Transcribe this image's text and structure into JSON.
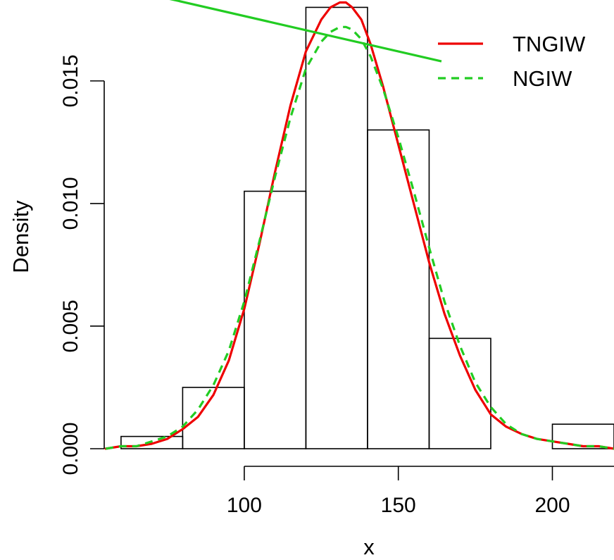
{
  "chart_data": {
    "type": "histogram",
    "xlabel": "x",
    "ylabel": "Density",
    "xlim": [
      55,
      220
    ],
    "ylim": [
      0,
      0.0183
    ],
    "x_ticks": [
      100,
      150,
      200
    ],
    "x_tick_labels": [
      "100",
      "150",
      "200"
    ],
    "y_ticks": [
      0.0,
      0.005,
      0.01,
      0.015
    ],
    "y_tick_labels": [
      "0.000",
      "0.005",
      "0.010",
      "0.015"
    ],
    "bins": [
      {
        "start": 60,
        "end": 80,
        "density": 0.0005
      },
      {
        "start": 80,
        "end": 100,
        "density": 0.0025
      },
      {
        "start": 100,
        "end": 120,
        "density": 0.0105
      },
      {
        "start": 120,
        "end": 140,
        "density": 0.018
      },
      {
        "start": 140,
        "end": 160,
        "density": 0.013
      },
      {
        "start": 160,
        "end": 180,
        "density": 0.0045
      },
      {
        "start": 180,
        "end": 200,
        "density": 0.0
      },
      {
        "start": 200,
        "end": 220,
        "density": 0.001
      }
    ],
    "series": [
      {
        "name": "TNGIW",
        "color": "#ee0000",
        "line_style": "solid",
        "x": [
          55,
          60,
          65,
          70,
          75,
          80,
          85,
          90,
          95,
          100,
          105,
          110,
          115,
          120,
          125,
          128,
          131,
          133,
          135,
          138,
          141,
          145,
          150,
          155,
          160,
          165,
          170,
          175,
          180,
          185,
          190,
          195,
          200,
          205,
          210,
          215,
          220
        ],
        "values": [
          0.0,
          0.0001,
          0.0001,
          0.0002,
          0.0004,
          0.0008,
          0.0013,
          0.0022,
          0.0036,
          0.0057,
          0.0084,
          0.0113,
          0.014,
          0.0162,
          0.0175,
          0.018,
          0.0182,
          0.0182,
          0.018,
          0.0175,
          0.0165,
          0.0148,
          0.0124,
          0.01,
          0.0076,
          0.0055,
          0.0038,
          0.0024,
          0.0014,
          0.0009,
          0.0006,
          0.0004,
          0.0003,
          0.0002,
          0.0001,
          0.0001,
          0.0
        ]
      },
      {
        "name": "NGIW",
        "color": "#22cc22",
        "line_style": "dashed",
        "x": [
          55,
          60,
          65,
          70,
          75,
          80,
          85,
          90,
          95,
          100,
          105,
          110,
          115,
          120,
          125,
          128,
          131,
          133,
          135,
          138,
          141,
          145,
          150,
          155,
          160,
          165,
          170,
          175,
          180,
          185,
          190,
          195,
          200,
          205,
          210,
          215,
          220
        ],
        "values": [
          0.0,
          0.0001,
          0.0001,
          0.0003,
          0.0005,
          0.0009,
          0.0016,
          0.0026,
          0.004,
          0.006,
          0.0085,
          0.0111,
          0.0135,
          0.0155,
          0.0166,
          0.017,
          0.0172,
          0.0172,
          0.0171,
          0.0167,
          0.016,
          0.0147,
          0.0127,
          0.0105,
          0.0082,
          0.006,
          0.0042,
          0.0027,
          0.0017,
          0.001,
          0.0006,
          0.0004,
          0.0003,
          0.0002,
          0.0001,
          0.0001,
          0.0
        ]
      }
    ],
    "annotation_line": {
      "color": "#22cc22",
      "x": [
        60,
        164
      ],
      "values": [
        0.0188,
        0.0158
      ]
    },
    "legend": {
      "position": "top-right",
      "entries": [
        {
          "label": "TNGIW",
          "color": "#ee0000",
          "line_style": "solid"
        },
        {
          "label": "NGIW",
          "color": "#22cc22",
          "line_style": "dashed"
        }
      ]
    },
    "grid": false
  }
}
